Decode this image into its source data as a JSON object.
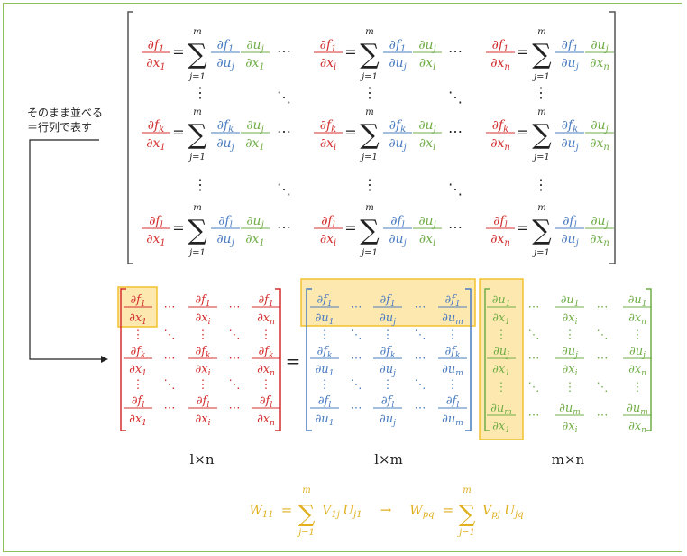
{
  "note": {
    "line1": "そのまま並べる",
    "line2": "＝行列で表す"
  },
  "colors": {
    "red": "#d32f2f",
    "blue": "#4a7cc1",
    "green": "#70ad47",
    "highlight_fill": "#fde9b0",
    "highlight_stroke": "#f2c12e",
    "formula": "#e0b020",
    "frame": "#8cbf5f"
  },
  "symbols": {
    "dots_h": "⋯",
    "dots_v": "⋮",
    "dots_d": "⋱",
    "equals": "=",
    "sum": "∑",
    "arrow": "→",
    "partial": "∂"
  },
  "indices": {
    "rows_f": [
      "1",
      "k",
      "l"
    ],
    "cols_x": [
      "1",
      "i",
      "n"
    ],
    "mid_u": [
      "1",
      "j",
      "m"
    ],
    "sum_lower": "j=1",
    "sum_upper": "m"
  },
  "dims": {
    "left": "l×n",
    "middle": "l×m",
    "right": "m×n"
  },
  "formula": {
    "lhs1": "W",
    "lhs1_sub": "11",
    "term1_V": "V",
    "term1_Vsub": "1j",
    "term1_U": "U",
    "term1_Usub": "j1",
    "lhs2": "W",
    "lhs2_sub": "pq",
    "term2_V": "V",
    "term2_Vsub": "pj",
    "term2_U": "U",
    "term2_Usub": "jq"
  }
}
